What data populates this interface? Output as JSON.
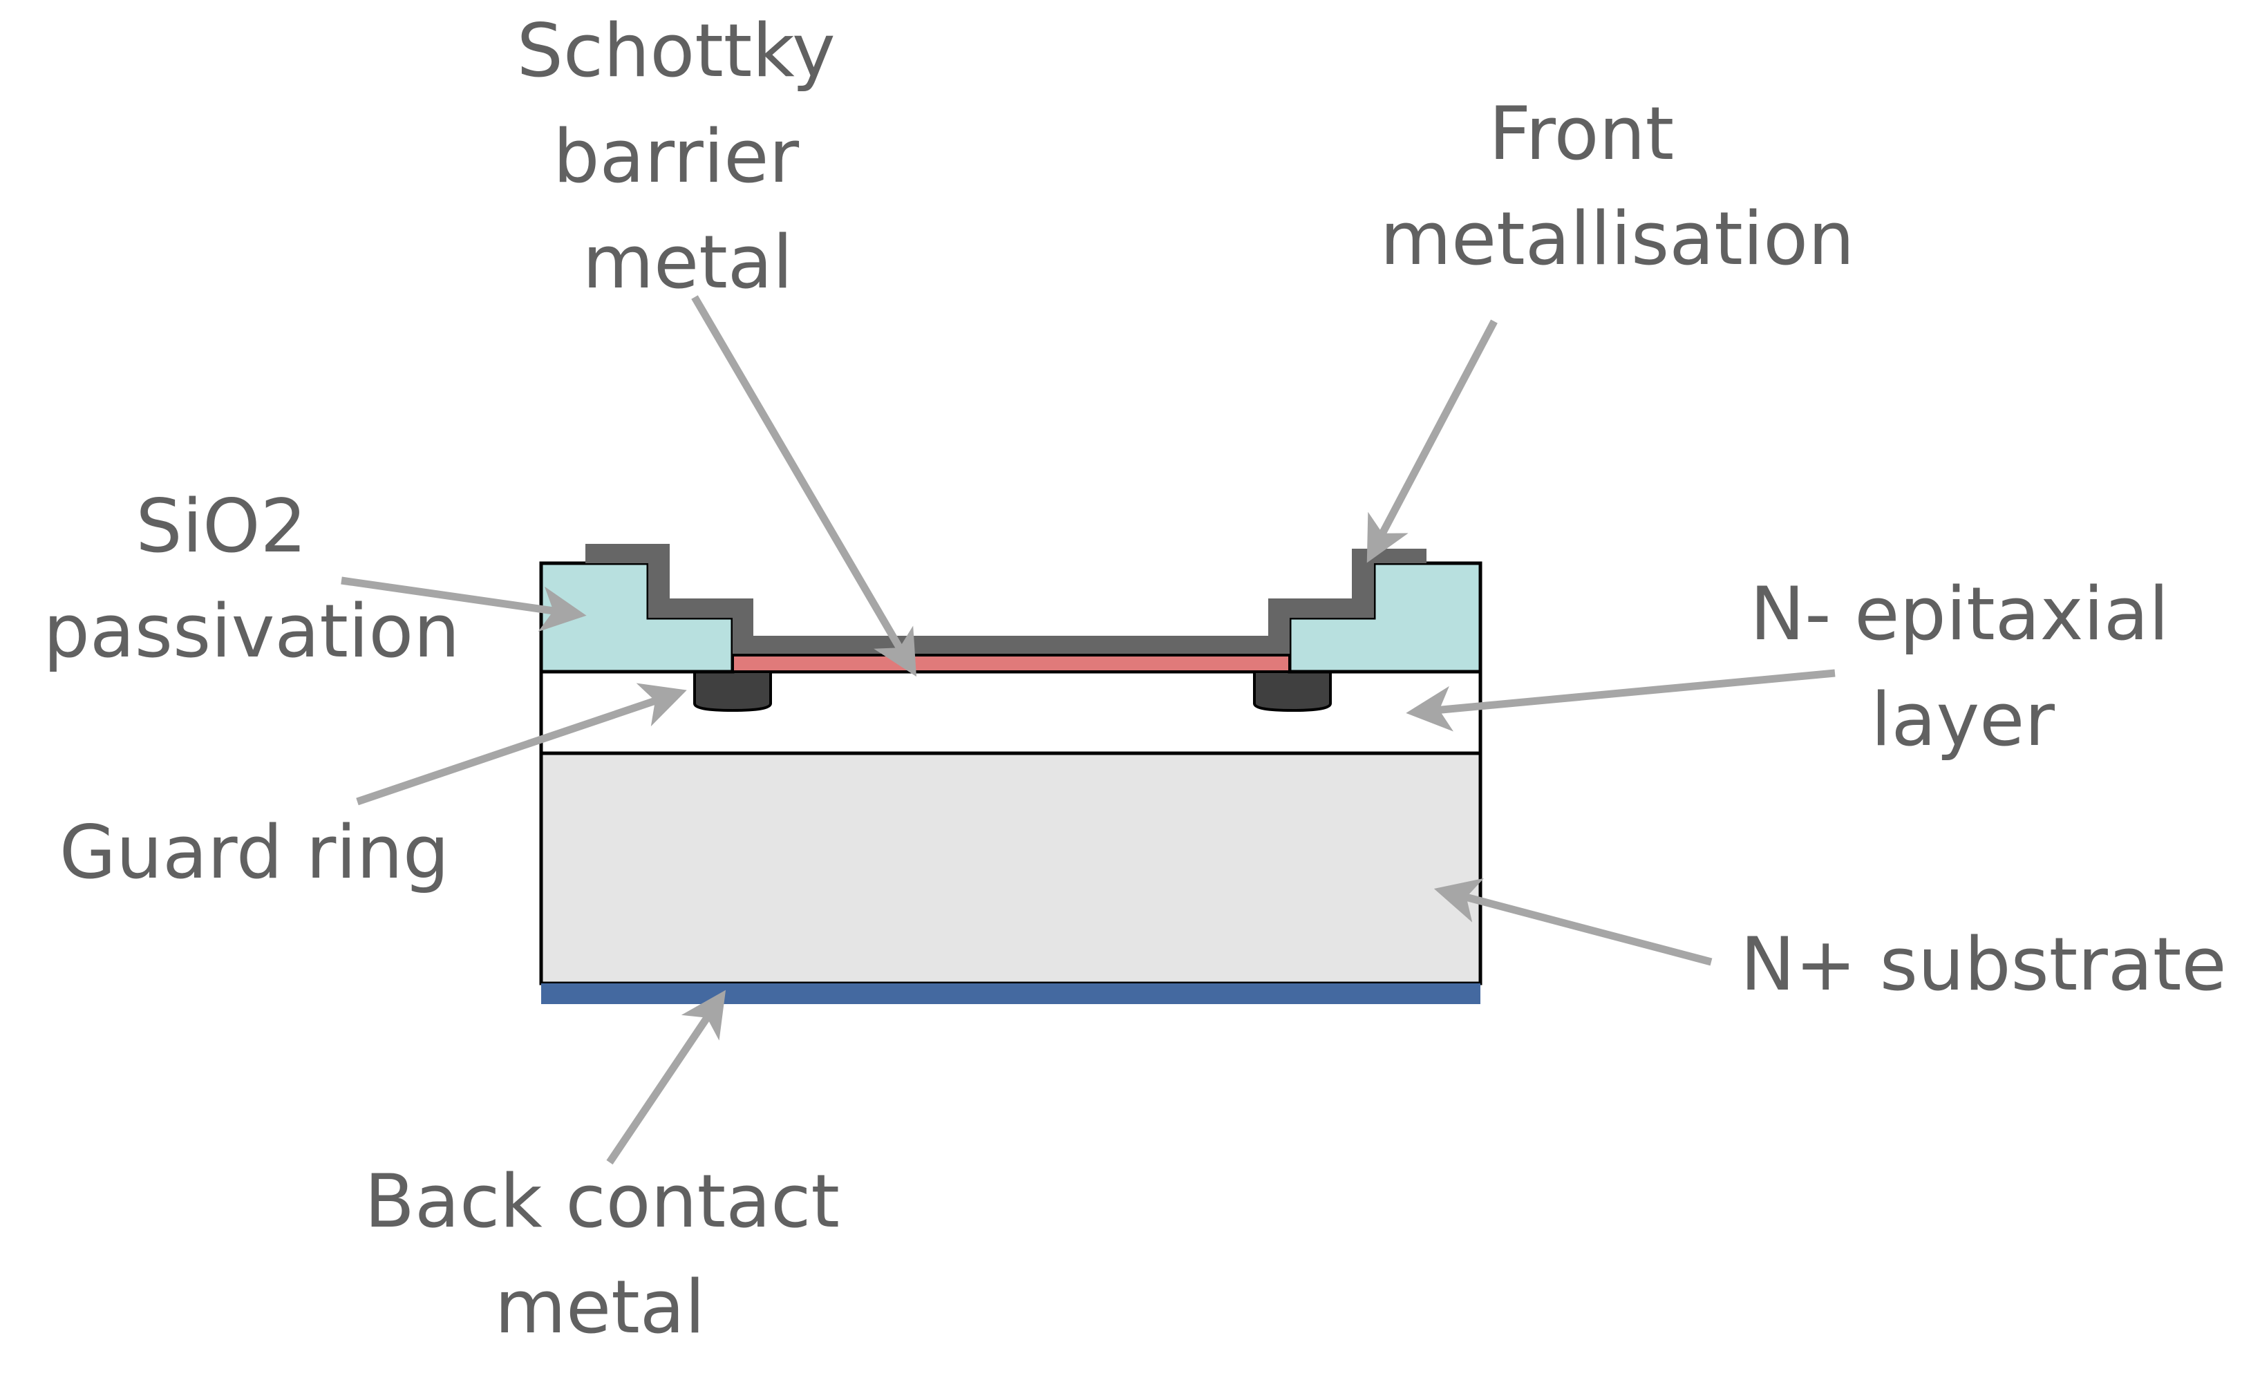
{
  "labels": {
    "schottky": [
      "Schottky",
      "barrier",
      "metal"
    ],
    "front_metal": [
      "Front",
      "metallisation"
    ],
    "sio2": [
      "SiO2",
      "passivation"
    ],
    "n_epi": [
      "N- epitaxial",
      "layer"
    ],
    "guard_ring": [
      "Guard ring"
    ],
    "n_substrate": [
      "N+ substrate"
    ],
    "back_contact": [
      "Back contact",
      "metal"
    ]
  },
  "colors": {
    "label_text": "#616161",
    "arrow": "#a6a6a6",
    "sio2_fill": "#b8e0df",
    "front_metal_fill": "#666666",
    "schottky_metal_fill": "#e07a7a",
    "guard_ring_fill": "#404040",
    "epi_fill": "#ffffff",
    "substrate_fill": "#e5e5e5",
    "back_contact_fill": "#4469a0",
    "outline": "#000000"
  }
}
